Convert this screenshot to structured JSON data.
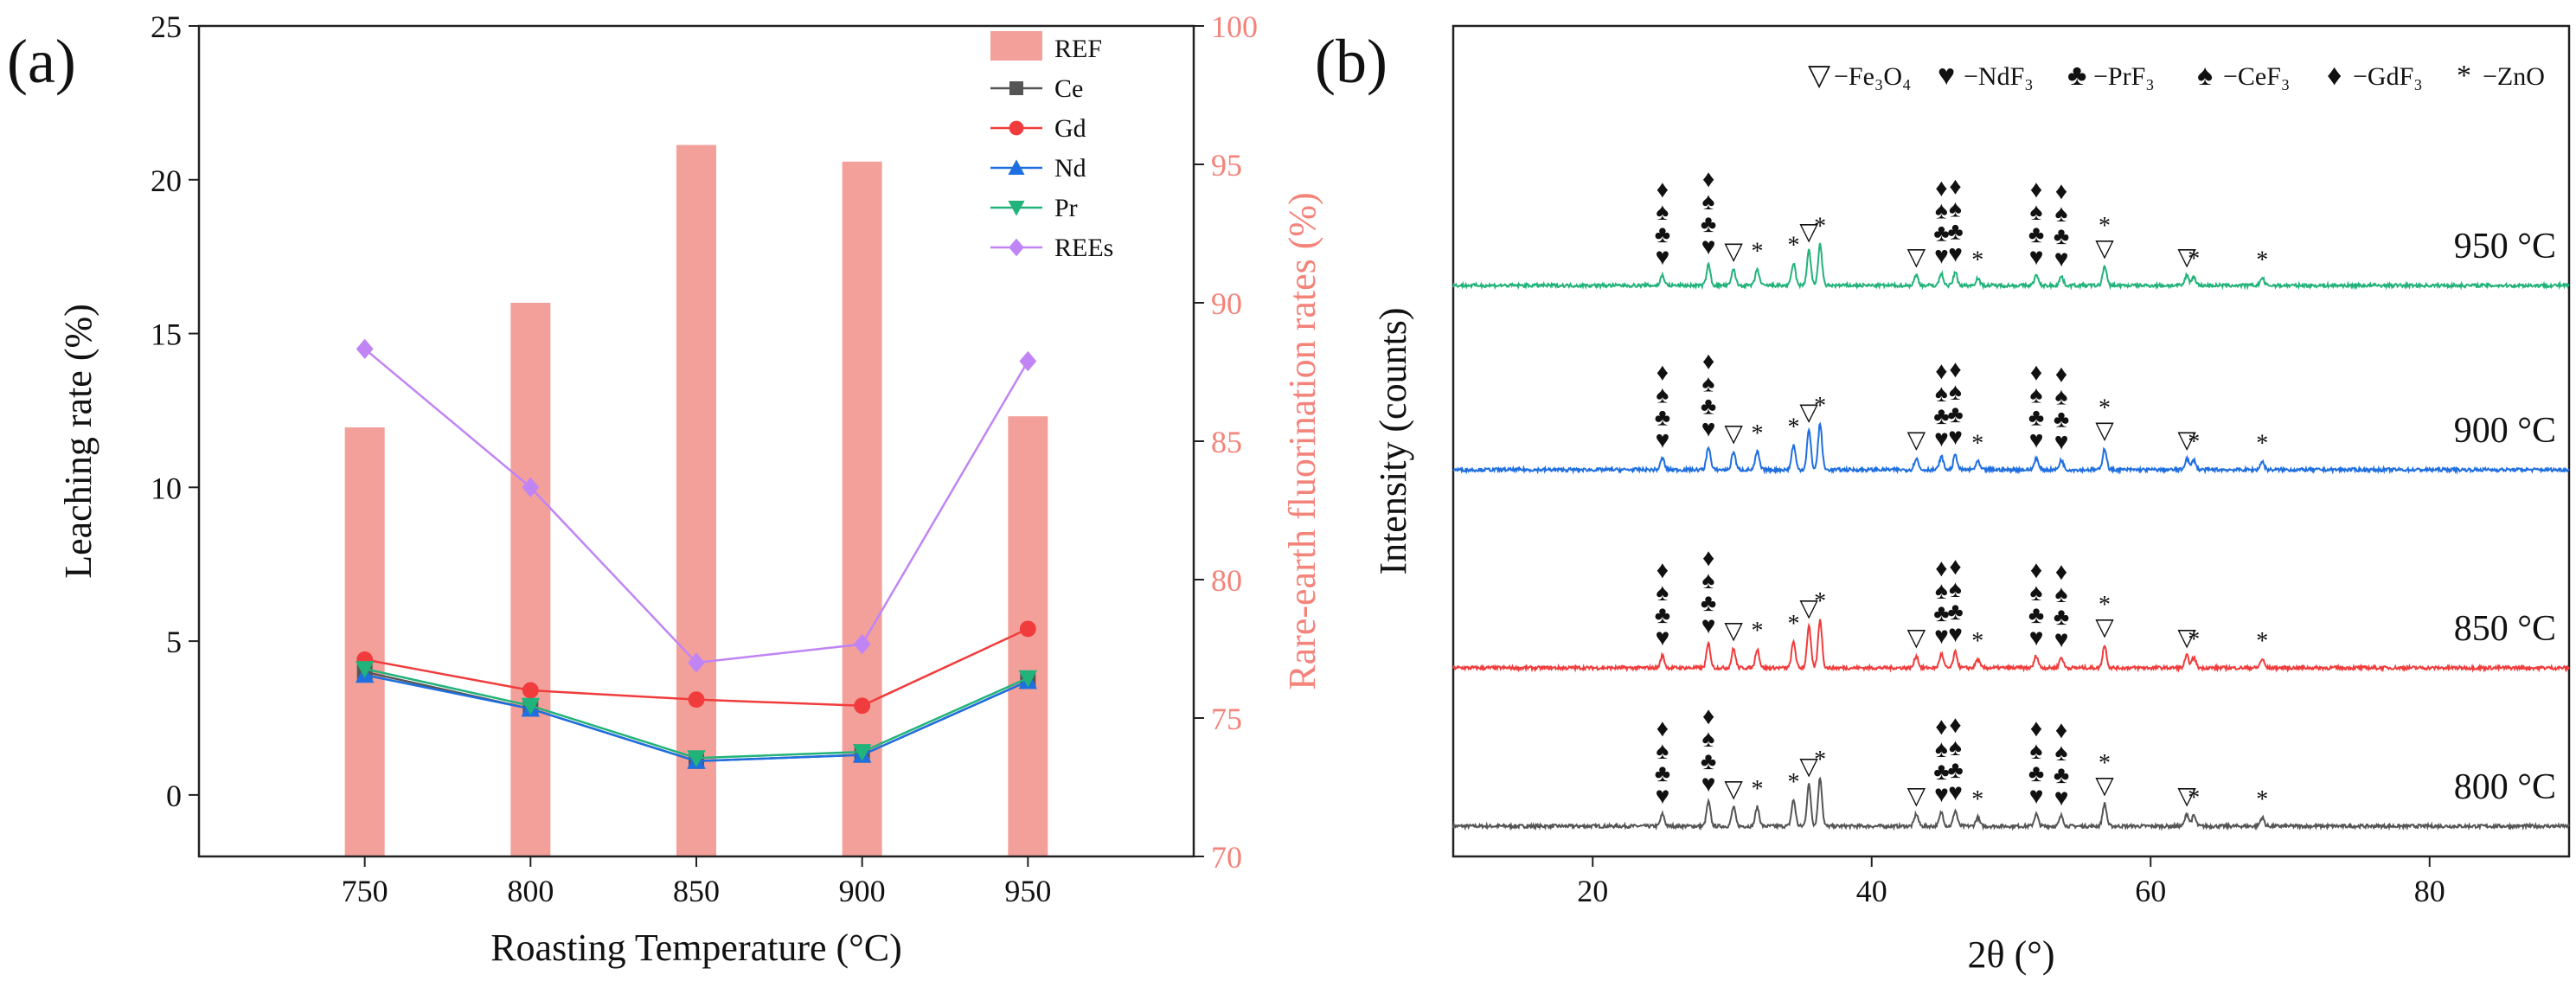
{
  "chart_data": [
    {
      "panel_label": "(a)",
      "type": "bar+line",
      "xlabel": "Roasting Temperature (°C)",
      "ylabel": "Leaching rate (%)",
      "y2label": "Rare-earth fluorination rates (%)",
      "categories": [
        750,
        800,
        850,
        900,
        950
      ],
      "xlim": [
        700,
        1000
      ],
      "ylim": [
        -2,
        25
      ],
      "y2lim": [
        70,
        100
      ],
      "yticks": [
        0,
        5,
        10,
        15,
        20,
        25
      ],
      "y2ticks": [
        70,
        75,
        80,
        85,
        90,
        95,
        100
      ],
      "legend": [
        "REF",
        "Ce",
        "Gd",
        "Nd",
        "Pr",
        "REEs"
      ],
      "legend_position": "top-right",
      "bar_series": {
        "name": "REF",
        "axis": "right",
        "color": "#f4a09a",
        "values": [
          85.5,
          90,
          95.7,
          95.1,
          85.9
        ]
      },
      "line_series": [
        {
          "name": "Ce",
          "marker": "square",
          "color": "#555555",
          "values": [
            4.0,
            2.8,
            1.1,
            1.3,
            3.7
          ]
        },
        {
          "name": "Gd",
          "marker": "circle",
          "color": "#f03c3c",
          "values": [
            4.4,
            3.4,
            3.1,
            2.9,
            5.4
          ]
        },
        {
          "name": "Nd",
          "marker": "triangle-up",
          "color": "#1f6fe0",
          "values": [
            3.9,
            2.8,
            1.1,
            1.3,
            3.7
          ]
        },
        {
          "name": "Pr",
          "marker": "triangle-down",
          "color": "#22b37a",
          "values": [
            4.1,
            2.9,
            1.2,
            1.4,
            3.8
          ]
        },
        {
          "name": "REEs",
          "marker": "diamond",
          "color": "#c084f5",
          "values": [
            14.5,
            10.0,
            4.3,
            4.9,
            14.1
          ]
        }
      ]
    },
    {
      "panel_label": "(b)",
      "type": "line",
      "xlabel": "2θ (°)",
      "ylabel": "Intensity (counts)",
      "xlim": [
        10,
        90
      ],
      "xticks": [
        20,
        40,
        60,
        80
      ],
      "legend_items": [
        {
          "symbol": "▽",
          "label": "−Fe₃O₄"
        },
        {
          "symbol": "♥",
          "label": "−NdF₃"
        },
        {
          "symbol": "♣",
          "label": "−PrF₃"
        },
        {
          "symbol": "♠",
          "label": "−CeF₃"
        },
        {
          "symbol": "♦",
          "label": "−GdF₃"
        },
        {
          "symbol": "*",
          "label": "−ZnO"
        }
      ],
      "peaks": [
        {
          "two_theta": 25.0,
          "height": 14,
          "stack": [
            "♦",
            "♠",
            "♣",
            "♥"
          ]
        },
        {
          "two_theta": 28.3,
          "height": 28,
          "stack": [
            "♦",
            "♠",
            "♣",
            "♥"
          ]
        },
        {
          "two_theta": 30.1,
          "height": 22,
          "stack": [
            "▽"
          ]
        },
        {
          "two_theta": 31.8,
          "height": 22,
          "stack": [
            "*"
          ]
        },
        {
          "two_theta": 34.4,
          "height": 30,
          "stack": [
            "*"
          ]
        },
        {
          "two_theta": 35.5,
          "height": 48,
          "stack": [
            "▽"
          ]
        },
        {
          "two_theta": 36.3,
          "height": 56,
          "stack": [
            "*"
          ]
        },
        {
          "two_theta": 43.2,
          "height": 14,
          "stack": [
            "▽"
          ]
        },
        {
          "two_theta": 45.0,
          "height": 16,
          "stack": [
            "♦",
            "♠",
            "♣",
            "♥"
          ]
        },
        {
          "two_theta": 46.0,
          "height": 18,
          "stack": [
            "♦",
            "♠",
            "♣",
            "♥"
          ]
        },
        {
          "two_theta": 47.6,
          "height": 10,
          "stack": [
            "*"
          ]
        },
        {
          "two_theta": 51.8,
          "height": 14,
          "stack": [
            "♦",
            "♠",
            "♣",
            "♥"
          ]
        },
        {
          "two_theta": 53.6,
          "height": 12,
          "stack": [
            "♦",
            "♠",
            "♣",
            "♥"
          ]
        },
        {
          "two_theta": 56.7,
          "height": 26,
          "stack": [
            "*",
            "▽"
          ]
        },
        {
          "two_theta": 62.6,
          "height": 14,
          "stack": [
            "▽"
          ]
        },
        {
          "two_theta": 63.1,
          "height": 12,
          "stack": [
            "*"
          ]
        },
        {
          "two_theta": 68.0,
          "height": 10,
          "stack": [
            "*"
          ]
        }
      ],
      "series": [
        {
          "name": "800 °C",
          "color": "#555555"
        },
        {
          "name": "850 °C",
          "color": "#f03c3c"
        },
        {
          "name": "900 °C",
          "color": "#1f6fe0"
        },
        {
          "name": "950 °C",
          "color": "#22b37a"
        }
      ]
    }
  ]
}
